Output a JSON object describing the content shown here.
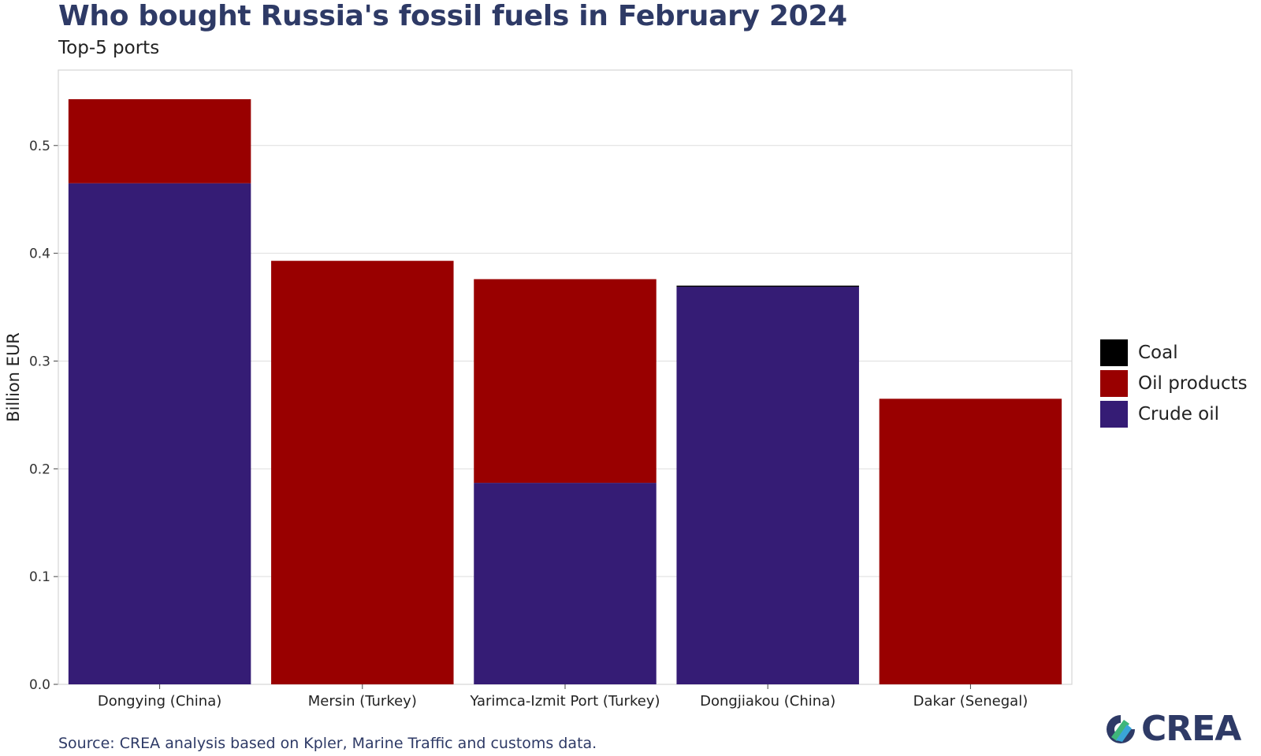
{
  "title": "Who bought Russia's fossil fuels in February 2024",
  "subtitle": "Top-5 ports",
  "source": "Source: CREA analysis based on Kpler, Marine Traffic and customs data.",
  "logo": {
    "text": "CREA",
    "icon": "crea-logo-icon"
  },
  "colors": {
    "Coal": "#000000",
    "Oil products": "#990000",
    "Crude oil": "#351c75",
    "grid": "#dedede",
    "frame": "#d4d4d4",
    "title": "#2e3a66"
  },
  "chart_data": {
    "type": "bar",
    "stacked": true,
    "categories": [
      "Dongying (China)",
      "Mersin (Turkey)",
      "Yarimca-Izmit Port (Turkey)",
      "Dongjiakou (China)",
      "Dakar (Senegal)"
    ],
    "series": [
      {
        "name": "Crude oil",
        "values": [
          0.465,
          0,
          0.187,
          0.369,
          0
        ]
      },
      {
        "name": "Oil products",
        "values": [
          0.078,
          0.393,
          0.189,
          0,
          0.265
        ]
      },
      {
        "name": "Coal",
        "values": [
          0,
          0,
          0,
          0.001,
          0
        ]
      }
    ],
    "legend_order": [
      "Coal",
      "Oil products",
      "Crude oil"
    ],
    "legend_position": "right",
    "ylabel": "Billion EUR",
    "xlabel": "",
    "ylim": [
      0,
      0.57
    ],
    "yticks": [
      "0.0",
      "0.1",
      "0.2",
      "0.3",
      "0.4",
      "0.5"
    ],
    "grid": true
  }
}
